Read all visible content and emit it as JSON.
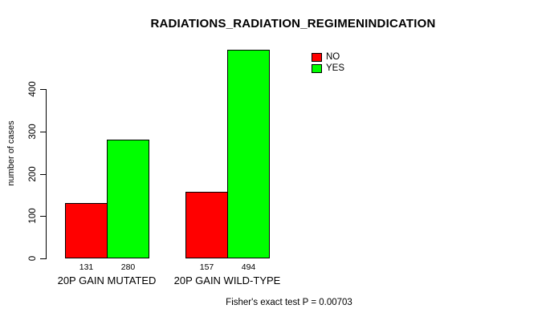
{
  "colors": {
    "background": "#ffffff",
    "axis": "#000000",
    "text": "#000000",
    "no_bar": "#ff0000",
    "yes_bar": "#00ff00"
  },
  "chart_data": {
    "type": "bar",
    "title": "RADIATIONS_RADIATION_REGIMENINDICATION",
    "xlabel": "",
    "ylabel": "number of cases",
    "categories": [
      "20P GAIN MUTATED",
      "20P GAIN WILD-TYPE"
    ],
    "series": [
      {
        "name": "NO",
        "color": "#ff0000",
        "values": [
          131,
          157
        ]
      },
      {
        "name": "YES",
        "color": "#00ff00",
        "values": [
          280,
          494
        ]
      }
    ],
    "bar_value_labels": [
      [
        131,
        280
      ],
      [
        157,
        494
      ]
    ],
    "yticks": [
      0,
      100,
      200,
      300,
      400
    ],
    "ylim": [
      0,
      500
    ],
    "grid": false,
    "legend_position": "top-right",
    "legend_labels": [
      "NO",
      "YES"
    ],
    "annotation": "Fisher's exact test P = 0.00703"
  }
}
